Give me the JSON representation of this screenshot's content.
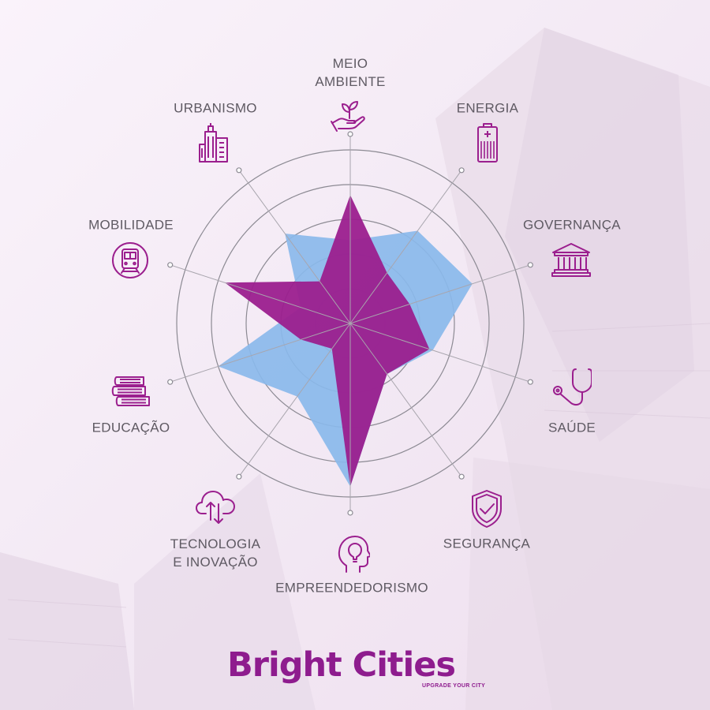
{
  "chart_data": {
    "type": "radar",
    "categories": [
      "MEIO AMBIENTE",
      "ENERGIA",
      "GOVERNANÇA",
      "SAÚDE",
      "SEGURANÇA",
      "EMPREENDEDORISMO",
      "TECNOLOGIA E INOVAÇÃO",
      "EDUCAÇÃO",
      "MOBILIDADE",
      "URBANISMO"
    ],
    "rings": 5,
    "rmax": 5,
    "series": [
      {
        "values": [
          2.4,
          3.3,
          3.7,
          2.5,
          1.8,
          4.7,
          2.6,
          4.0,
          1.5,
          3.2
        ],
        "color": "#8ab8ea"
      },
      {
        "values": [
          3.7,
          1.8,
          1.8,
          2.4,
          1.8,
          4.7,
          0.9,
          1.5,
          3.8,
          1.5
        ],
        "color": "#9b1f8e"
      }
    ]
  },
  "labels": {
    "meio_ambiente": [
      "MEIO",
      "AMBIENTE"
    ],
    "urbanismo": "URBANISMO",
    "energia": "ENERGIA",
    "mobilidade": "MOBILIDADE",
    "governanca": "GOVERNANÇA",
    "educacao": "EDUCAÇÃO",
    "saude": "SAÚDE",
    "tecnologia": [
      "TECNOLOGIA",
      "E INOVAÇÃO"
    ],
    "seguranca": "SEGURANÇA",
    "empreendedorismo": "EMPREENDEDORISMO"
  },
  "icons": {
    "meio_ambiente": "plant-hand-icon",
    "urbanismo": "buildings-icon",
    "energia": "battery-icon",
    "mobilidade": "train-icon",
    "governanca": "government-building-icon",
    "educacao": "books-icon",
    "saude": "stethoscope-icon",
    "tecnologia": "cloud-transfer-icon",
    "seguranca": "shield-check-icon",
    "empreendedorismo": "head-lightbulb-icon"
  },
  "brand": {
    "name": "Bright Cities",
    "tagline": "UPGRADE YOUR CITY"
  },
  "colors": {
    "accent": "#9b1f8e",
    "label": "#5f5a63",
    "grid": "#8c8a93"
  }
}
